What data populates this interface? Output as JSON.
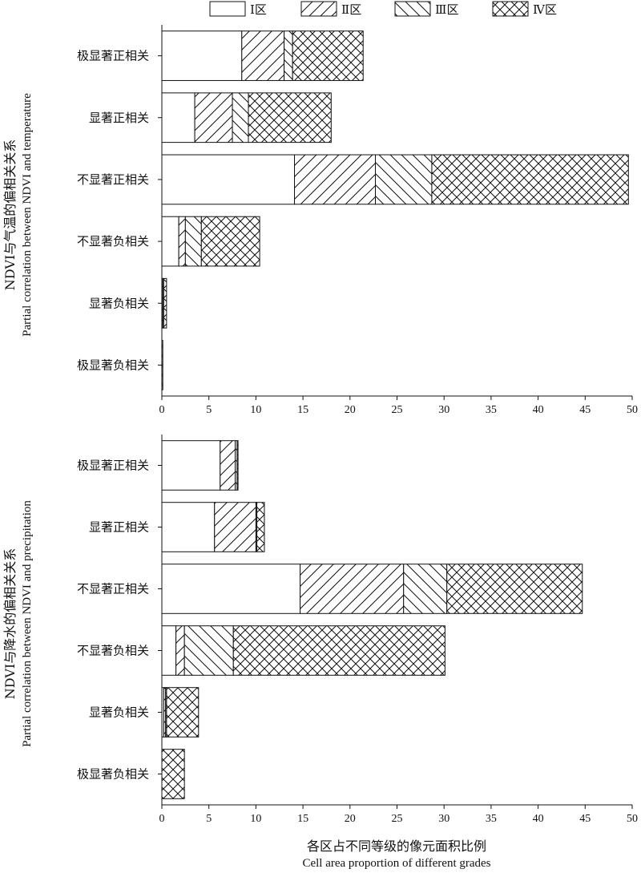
{
  "legend": [
    "Ⅰ区",
    "Ⅱ区",
    "Ⅲ区",
    "Ⅳ区"
  ],
  "xlabel_zh": "各区占不同等级的像元面积比例",
  "xlabel_en": "Cell area proportion of different grades",
  "chart_data": [
    {
      "type": "bar",
      "orientation": "horizontal",
      "stacked": true,
      "ylabel_zh": "NDVI与气温的偏相关关系",
      "ylabel_en": "Partial correlation between NDVI and temperature",
      "categories": [
        "极显著正相关",
        "显著正相关",
        "不显著正相关",
        "不显著负相关",
        "显著负相关",
        "极显著负相关"
      ],
      "series": [
        {
          "name": "Ⅰ区",
          "values": [
            8.5,
            3.5,
            14.1,
            1.8,
            0.0,
            0.0
          ]
        },
        {
          "name": "Ⅱ区",
          "values": [
            4.5,
            4.0,
            8.6,
            0.7,
            0.1,
            0.0
          ]
        },
        {
          "name": "Ⅲ区",
          "values": [
            0.9,
            1.7,
            6.0,
            1.7,
            0.1,
            0.0
          ]
        },
        {
          "name": "Ⅳ区",
          "values": [
            7.5,
            8.8,
            20.9,
            6.2,
            0.3,
            0.1
          ]
        }
      ],
      "xlim": [
        0,
        50
      ],
      "xticks": [
        0,
        5,
        10,
        15,
        20,
        25,
        30,
        35,
        40,
        45,
        50
      ]
    },
    {
      "type": "bar",
      "orientation": "horizontal",
      "stacked": true,
      "ylabel_zh": "NDVI与降水的偏相关关系",
      "ylabel_en": "Partial correlation between NDVI and precipitation",
      "categories": [
        "极显著正相关",
        "显著正相关",
        "不显著正相关",
        "不显著负相关",
        "显著负相关",
        "极显著负相关"
      ],
      "series": [
        {
          "name": "Ⅰ区",
          "values": [
            6.2,
            5.6,
            14.7,
            1.5,
            0.2,
            0.0
          ]
        },
        {
          "name": "Ⅱ区",
          "values": [
            1.6,
            4.4,
            11.0,
            0.9,
            0.2,
            0.0
          ]
        },
        {
          "name": "Ⅲ区",
          "values": [
            0.2,
            0.1,
            4.6,
            5.2,
            0.1,
            0.0
          ]
        },
        {
          "name": "Ⅳ区",
          "values": [
            0.1,
            0.8,
            14.4,
            22.5,
            3.4,
            2.4
          ]
        }
      ],
      "xlim": [
        0,
        50
      ],
      "xticks": [
        0,
        5,
        10,
        15,
        20,
        25,
        30,
        35,
        40,
        45,
        50
      ]
    }
  ]
}
